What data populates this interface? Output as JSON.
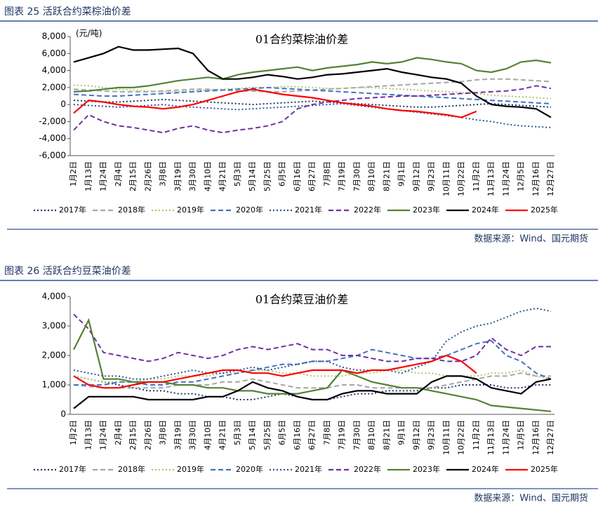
{
  "chart_data": [
    {
      "type": "line",
      "heading": "图表 25 活跃合约菜棕油价差",
      "title": "01合约菜棕油价差",
      "y_label": "(元/吨)",
      "source": "数据来源：Wind、国元期货",
      "categories": [
        "1月2日",
        "1月13日",
        "1月24日",
        "2月4日",
        "2月15日",
        "2月26日",
        "3月8日",
        "3月19日",
        "3月30日",
        "4月10日",
        "4月21日",
        "5月3日",
        "5月14日",
        "5月25日",
        "6月5日",
        "6月16日",
        "6月27日",
        "7月8日",
        "7月19日",
        "7月30日",
        "8月10日",
        "8月21日",
        "9月1日",
        "9月12日",
        "9月23日",
        "10月11日",
        "10月22日",
        "11月2日",
        "11月13日",
        "11月24日",
        "12月5日",
        "12月16日",
        "12月27日"
      ],
      "ylim": [
        -6000,
        8000
      ],
      "yticks": [
        {
          "value": -6000,
          "label": "-6,000"
        },
        {
          "value": -4000,
          "label": "-4,000"
        },
        {
          "value": -2000,
          "label": "-2,000"
        },
        0,
        {
          "value": 2000,
          "label": "2,000"
        },
        {
          "value": 4000,
          "label": "4,000"
        },
        {
          "value": 6000,
          "label": "6,000"
        },
        {
          "value": 8000,
          "label": "8,000"
        }
      ],
      "series": [
        {
          "name": "2017年",
          "color": "#1f3864",
          "style": "dotted",
          "values": [
            500,
            400,
            300,
            300,
            400,
            500,
            600,
            500,
            400,
            300,
            200,
            100,
            0,
            100,
            200,
            300,
            400,
            300,
            200,
            100,
            0,
            -100,
            -200,
            -300,
            -300,
            -200,
            -100,
            0,
            100,
            0,
            -100,
            -200,
            -300
          ]
        },
        {
          "name": "2018年",
          "color": "#a6a6a6",
          "style": "dashed",
          "values": [
            1800,
            1700,
            1600,
            1500,
            1500,
            1500,
            1600,
            1700,
            1800,
            1800,
            1700,
            1600,
            1600,
            1500,
            1500,
            1600,
            1700,
            1800,
            1900,
            2000,
            2100,
            2200,
            2300,
            2400,
            2500,
            2600,
            2700,
            2900,
            3000,
            3000,
            2900,
            2800,
            2700
          ]
        },
        {
          "name": "2019年",
          "color": "#a9c96b",
          "style": "dotted",
          "values": [
            2300,
            2200,
            2000,
            1800,
            1700,
            1600,
            1500,
            1500,
            1600,
            1700,
            1800,
            1900,
            2000,
            2000,
            2100,
            2100,
            2000,
            1900,
            1900,
            2000,
            2000,
            1900,
            1800,
            1700,
            1600,
            1500,
            1400,
            1300,
            1100,
            1000,
            900,
            800,
            700
          ]
        },
        {
          "name": "2020年",
          "color": "#4472c4",
          "style": "dashed",
          "values": [
            1200,
            1100,
            1000,
            1000,
            1100,
            1200,
            1300,
            1400,
            1500,
            1600,
            1700,
            1800,
            1900,
            2000,
            1900,
            1800,
            1700,
            1600,
            1500,
            1400,
            1300,
            1200,
            1100,
            1000,
            900,
            800,
            700,
            600,
            500,
            400,
            300,
            200,
            100
          ]
        },
        {
          "name": "2021年",
          "color": "#2f5597",
          "style": "dotted",
          "values": [
            0,
            -100,
            -200,
            -300,
            -200,
            -100,
            0,
            -200,
            -300,
            -400,
            -500,
            -600,
            -500,
            -400,
            -300,
            -200,
            -100,
            0,
            100,
            -100,
            -300,
            -500,
            -700,
            -900,
            -1100,
            -1300,
            -1500,
            -1800,
            -2000,
            -2300,
            -2500,
            -2600,
            -2700
          ]
        },
        {
          "name": "2022年",
          "color": "#7030a0",
          "style": "dashed",
          "values": [
            -3000,
            -1200,
            -2000,
            -2500,
            -2700,
            -3000,
            -3300,
            -2800,
            -2500,
            -3000,
            -3300,
            -3000,
            -2800,
            -2500,
            -2000,
            -500,
            0,
            300,
            500,
            700,
            800,
            900,
            1000,
            1000,
            1100,
            1200,
            1300,
            1400,
            1500,
            1600,
            1800,
            2200,
            1900
          ]
        },
        {
          "name": "2023年",
          "color": "#548235",
          "style": "solid",
          "values": [
            1500,
            1600,
            1800,
            2000,
            2000,
            2200,
            2500,
            2800,
            3000,
            3200,
            3000,
            3500,
            3800,
            4000,
            4200,
            4400,
            4000,
            4300,
            4500,
            4700,
            5000,
            4800,
            5000,
            5500,
            5300,
            5000,
            4800,
            4000,
            3800,
            4200,
            5000,
            5200,
            4900
          ]
        },
        {
          "name": "2024年",
          "color": "#000000",
          "style": "solid",
          "values": [
            5000,
            5500,
            6000,
            6800,
            6400,
            6400,
            6500,
            6600,
            6000,
            4000,
            3000,
            3000,
            3200,
            3500,
            3300,
            3000,
            3200,
            3500,
            3600,
            3800,
            4000,
            4200,
            3800,
            3500,
            3200,
            3000,
            2500,
            1000,
            0,
            -200,
            -300,
            -500,
            -1500
          ]
        },
        {
          "name": "2025年",
          "color": "#ff0000",
          "style": "solid",
          "values": [
            -1000,
            500,
            300,
            0,
            -200,
            -300,
            -500,
            -300,
            0,
            500,
            1000,
            1500,
            1800,
            1500,
            1200,
            1000,
            800,
            500,
            200,
            0,
            -200,
            -500,
            -700,
            -800,
            -1000,
            -1200,
            -1500,
            -800,
            null,
            null,
            null,
            null,
            null
          ]
        }
      ]
    },
    {
      "type": "line",
      "heading": "图表 26 活跃合约豆菜油价差",
      "title": "01合约菜豆油价差",
      "source": "数据来源：Wind、国元期货",
      "categories": [
        "1月2日",
        "1月13日",
        "1月24日",
        "2月4日",
        "2月15日",
        "2月26日",
        "3月8日",
        "3月19日",
        "3月30日",
        "4月10日",
        "4月21日",
        "5月3日",
        "5月14日",
        "5月25日",
        "6月5日",
        "6月16日",
        "6月27日",
        "7月8日",
        "7月19日",
        "7月30日",
        "8月10日",
        "8月21日",
        "9月1日",
        "9月12日",
        "9月23日",
        "10月11日",
        "10月22日",
        "11月2日",
        "11月13日",
        "11月24日",
        "12月5日",
        "12月16日",
        "12月27日"
      ],
      "ylim": [
        0,
        4000
      ],
      "yticks": [
        0,
        {
          "value": 1000,
          "label": "1,000"
        },
        {
          "value": 2000,
          "label": "2,000"
        },
        {
          "value": 3000,
          "label": "3,000"
        },
        {
          "value": 4000,
          "label": "4,000"
        }
      ],
      "series": [
        {
          "name": "2017年",
          "color": "#1f3864",
          "style": "dotted",
          "values": [
            1300,
            1200,
            1100,
            1000,
            900,
            800,
            800,
            700,
            700,
            600,
            600,
            500,
            500,
            600,
            700,
            600,
            500,
            500,
            600,
            700,
            700,
            800,
            800,
            800,
            900,
            900,
            1000,
            1000,
            1000,
            900,
            900,
            1000,
            1000
          ]
        },
        {
          "name": "2018年",
          "color": "#a6a6a6",
          "style": "dashed",
          "values": [
            1000,
            950,
            900,
            900,
            900,
            900,
            900,
            1000,
            1000,
            1000,
            1100,
            1100,
            1200,
            1100,
            1000,
            900,
            900,
            900,
            1000,
            1000,
            900,
            900,
            900,
            900,
            900,
            1000,
            1100,
            1200,
            1300,
            1300,
            1400,
            1300,
            1300
          ]
        },
        {
          "name": "2019年",
          "color": "#a9c96b",
          "style": "dotted",
          "values": [
            1300,
            1200,
            1100,
            1100,
            1100,
            1200,
            1200,
            1300,
            1300,
            1300,
            1400,
            1400,
            1500,
            1500,
            1400,
            1400,
            1300,
            1300,
            1300,
            1400,
            1400,
            1500,
            1500,
            1400,
            1400,
            1300,
            1300,
            1300,
            1400,
            1400,
            1500,
            1300,
            1200
          ]
        },
        {
          "name": "2020年",
          "color": "#4472c4",
          "style": "dashed",
          "values": [
            1000,
            1000,
            1000,
            1100,
            1100,
            1000,
            1000,
            1100,
            1100,
            1200,
            1300,
            1400,
            1500,
            1600,
            1700,
            1700,
            1800,
            1800,
            1900,
            2000,
            2200,
            2100,
            2000,
            1900,
            1900,
            2000,
            2200,
            2400,
            2500,
            2000,
            1800,
            1400,
            1200
          ]
        },
        {
          "name": "2021年",
          "color": "#2f5597",
          "style": "dotted",
          "values": [
            1500,
            1400,
            1300,
            1300,
            1200,
            1200,
            1300,
            1400,
            1500,
            1400,
            1400,
            1500,
            1600,
            1500,
            1600,
            1700,
            1800,
            1800,
            1600,
            1500,
            1500,
            1500,
            1400,
            1600,
            1800,
            2500,
            2800,
            3000,
            3100,
            3300,
            3500,
            3600,
            3500
          ]
        },
        {
          "name": "2022年",
          "color": "#7030a0",
          "style": "dashed",
          "values": [
            3400,
            2900,
            2100,
            2000,
            1900,
            1800,
            1900,
            2100,
            2000,
            1900,
            2000,
            2200,
            2300,
            2200,
            2300,
            2400,
            2200,
            2200,
            2000,
            2000,
            1900,
            1800,
            1800,
            1900,
            1900,
            1800,
            1800,
            2000,
            2600,
            2200,
            2000,
            2300,
            2300
          ]
        },
        {
          "name": "2023年",
          "color": "#548235",
          "style": "solid",
          "values": [
            2200,
            3200,
            1200,
            1200,
            1100,
            1100,
            1100,
            1000,
            1000,
            900,
            900,
            800,
            800,
            700,
            700,
            700,
            800,
            900,
            1500,
            1300,
            1100,
            1000,
            900,
            900,
            800,
            700,
            600,
            500,
            300,
            250,
            200,
            150,
            100
          ]
        },
        {
          "name": "2024年",
          "color": "#000000",
          "style": "solid",
          "values": [
            200,
            600,
            600,
            600,
            600,
            500,
            500,
            500,
            500,
            600,
            600,
            800,
            1100,
            900,
            800,
            600,
            500,
            500,
            700,
            800,
            800,
            700,
            700,
            700,
            1100,
            1300,
            1300,
            1200,
            900,
            800,
            700,
            1100,
            1200
          ]
        },
        {
          "name": "2025年",
          "color": "#ff0000",
          "style": "solid",
          "values": [
            1300,
            1000,
            900,
            900,
            1000,
            1100,
            1100,
            1200,
            1300,
            1400,
            1500,
            1500,
            1400,
            1400,
            1300,
            1400,
            1500,
            1500,
            1500,
            1400,
            1500,
            1500,
            1600,
            1700,
            1800,
            2000,
            1800,
            1400,
            null,
            null,
            null,
            null,
            null
          ]
        }
      ]
    }
  ]
}
